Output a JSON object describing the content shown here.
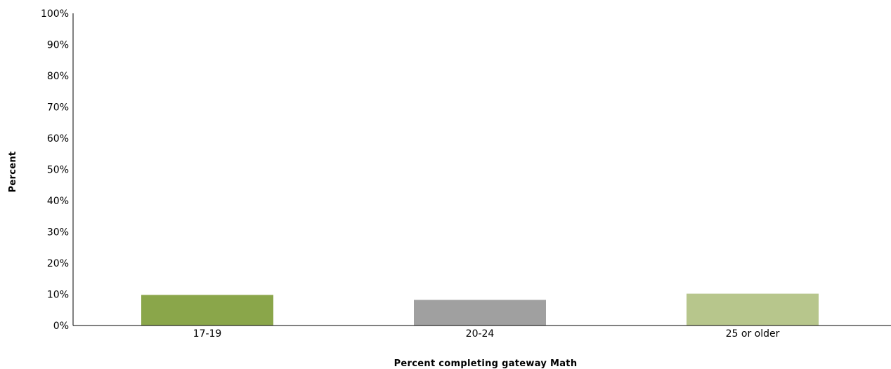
{
  "chart_data": {
    "type": "bar",
    "categories": [
      "17-19",
      "20-24",
      "25 or older"
    ],
    "values": [
      9.8,
      8.2,
      10.2
    ],
    "colors": [
      "#8aa64a",
      "#a0a0a0",
      "#b7c68c"
    ],
    "title": "",
    "xlabel": "Percent completing gateway Math",
    "ylabel": "Percent",
    "ylim": [
      0,
      100
    ],
    "yticks": [
      "0%",
      "10%",
      "20%",
      "30%",
      "40%",
      "50%",
      "60%",
      "70%",
      "80%",
      "90%",
      "100%"
    ],
    "grid": false,
    "legend": "none"
  }
}
